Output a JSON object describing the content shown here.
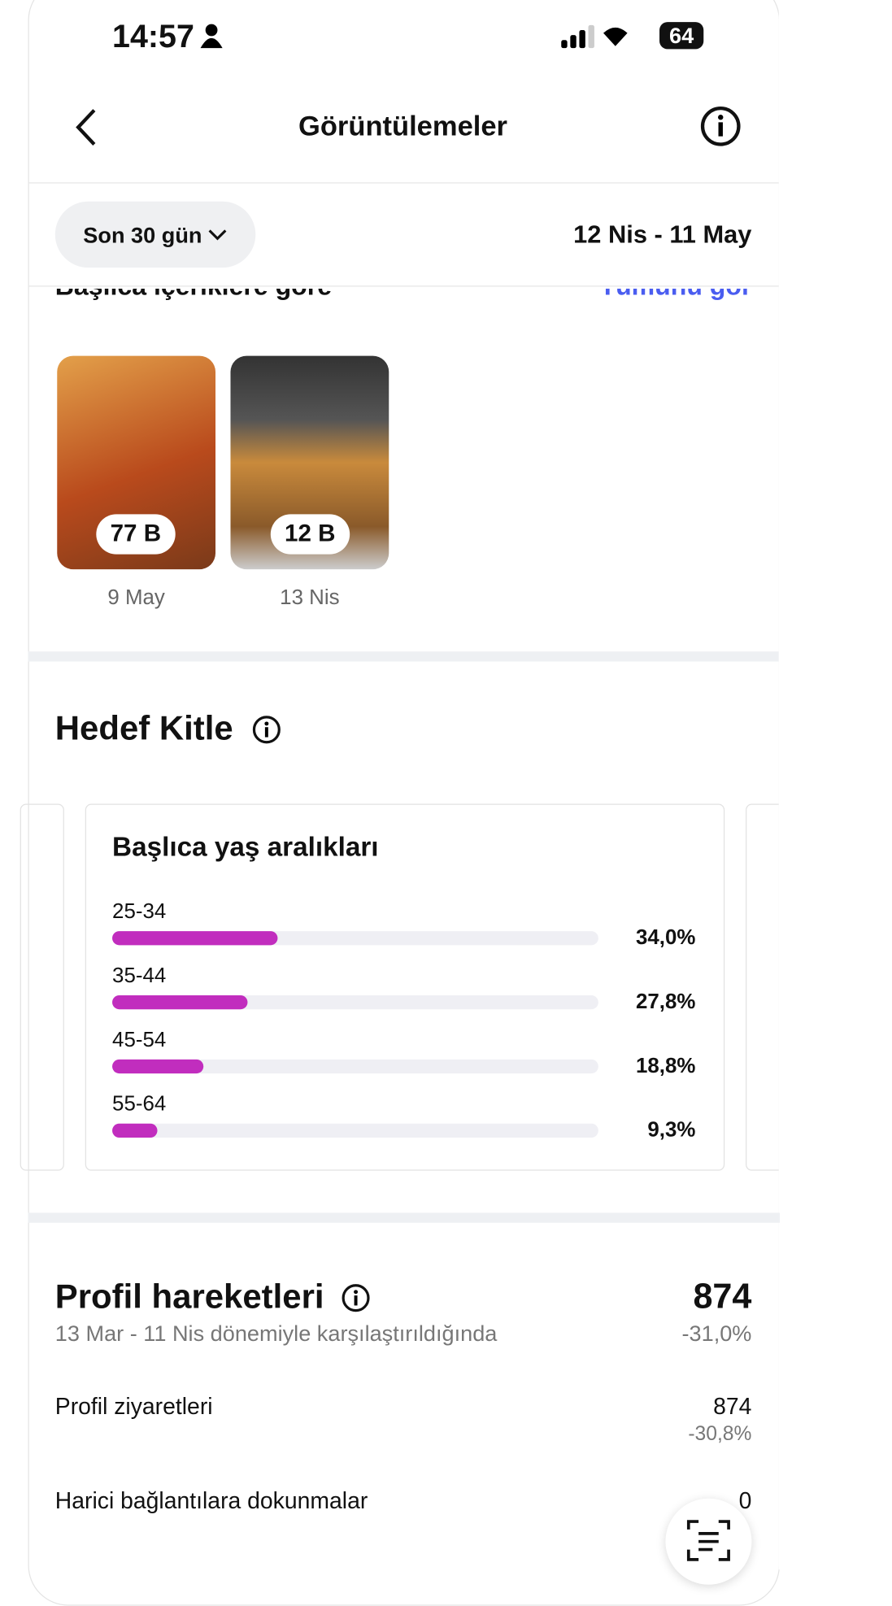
{
  "status_bar": {
    "time": "14:57",
    "battery": "64"
  },
  "header": {
    "title": "Görüntülemeler"
  },
  "filter": {
    "period": "Son 30 gün",
    "range": "12 Nis - 11 May"
  },
  "top_content": {
    "title": "Başlıca içeriklere göre",
    "link": "Tümünü gör",
    "items": [
      {
        "views": "77 B",
        "date": "9 May"
      },
      {
        "views": "12 B",
        "date": "13 Nis"
      }
    ]
  },
  "audience": {
    "title": "Hedef Kitle"
  },
  "chart_data": {
    "type": "bar",
    "title": "Başlıca yaş aralıkları",
    "categories": [
      "25-34",
      "35-44",
      "45-54",
      "55-64"
    ],
    "values": [
      34.0,
      27.8,
      18.8,
      9.3
    ],
    "value_labels": [
      "34,0%",
      "27,8%",
      "18,8%",
      "9,3%"
    ],
    "color": "#c12dbe",
    "xlim": [
      0,
      100
    ]
  },
  "profile": {
    "title": "Profil hareketleri",
    "total": "874",
    "change": "-31,0%",
    "subtitle": "13 Mar - 11 Nis dönemiyle karşılaştırıldığında",
    "rows": [
      {
        "label": "Profil ziyaretleri",
        "value": "874",
        "change": "-30,8%"
      },
      {
        "label": "Harici bağlantılara dokunmalar",
        "value": "0"
      }
    ]
  }
}
